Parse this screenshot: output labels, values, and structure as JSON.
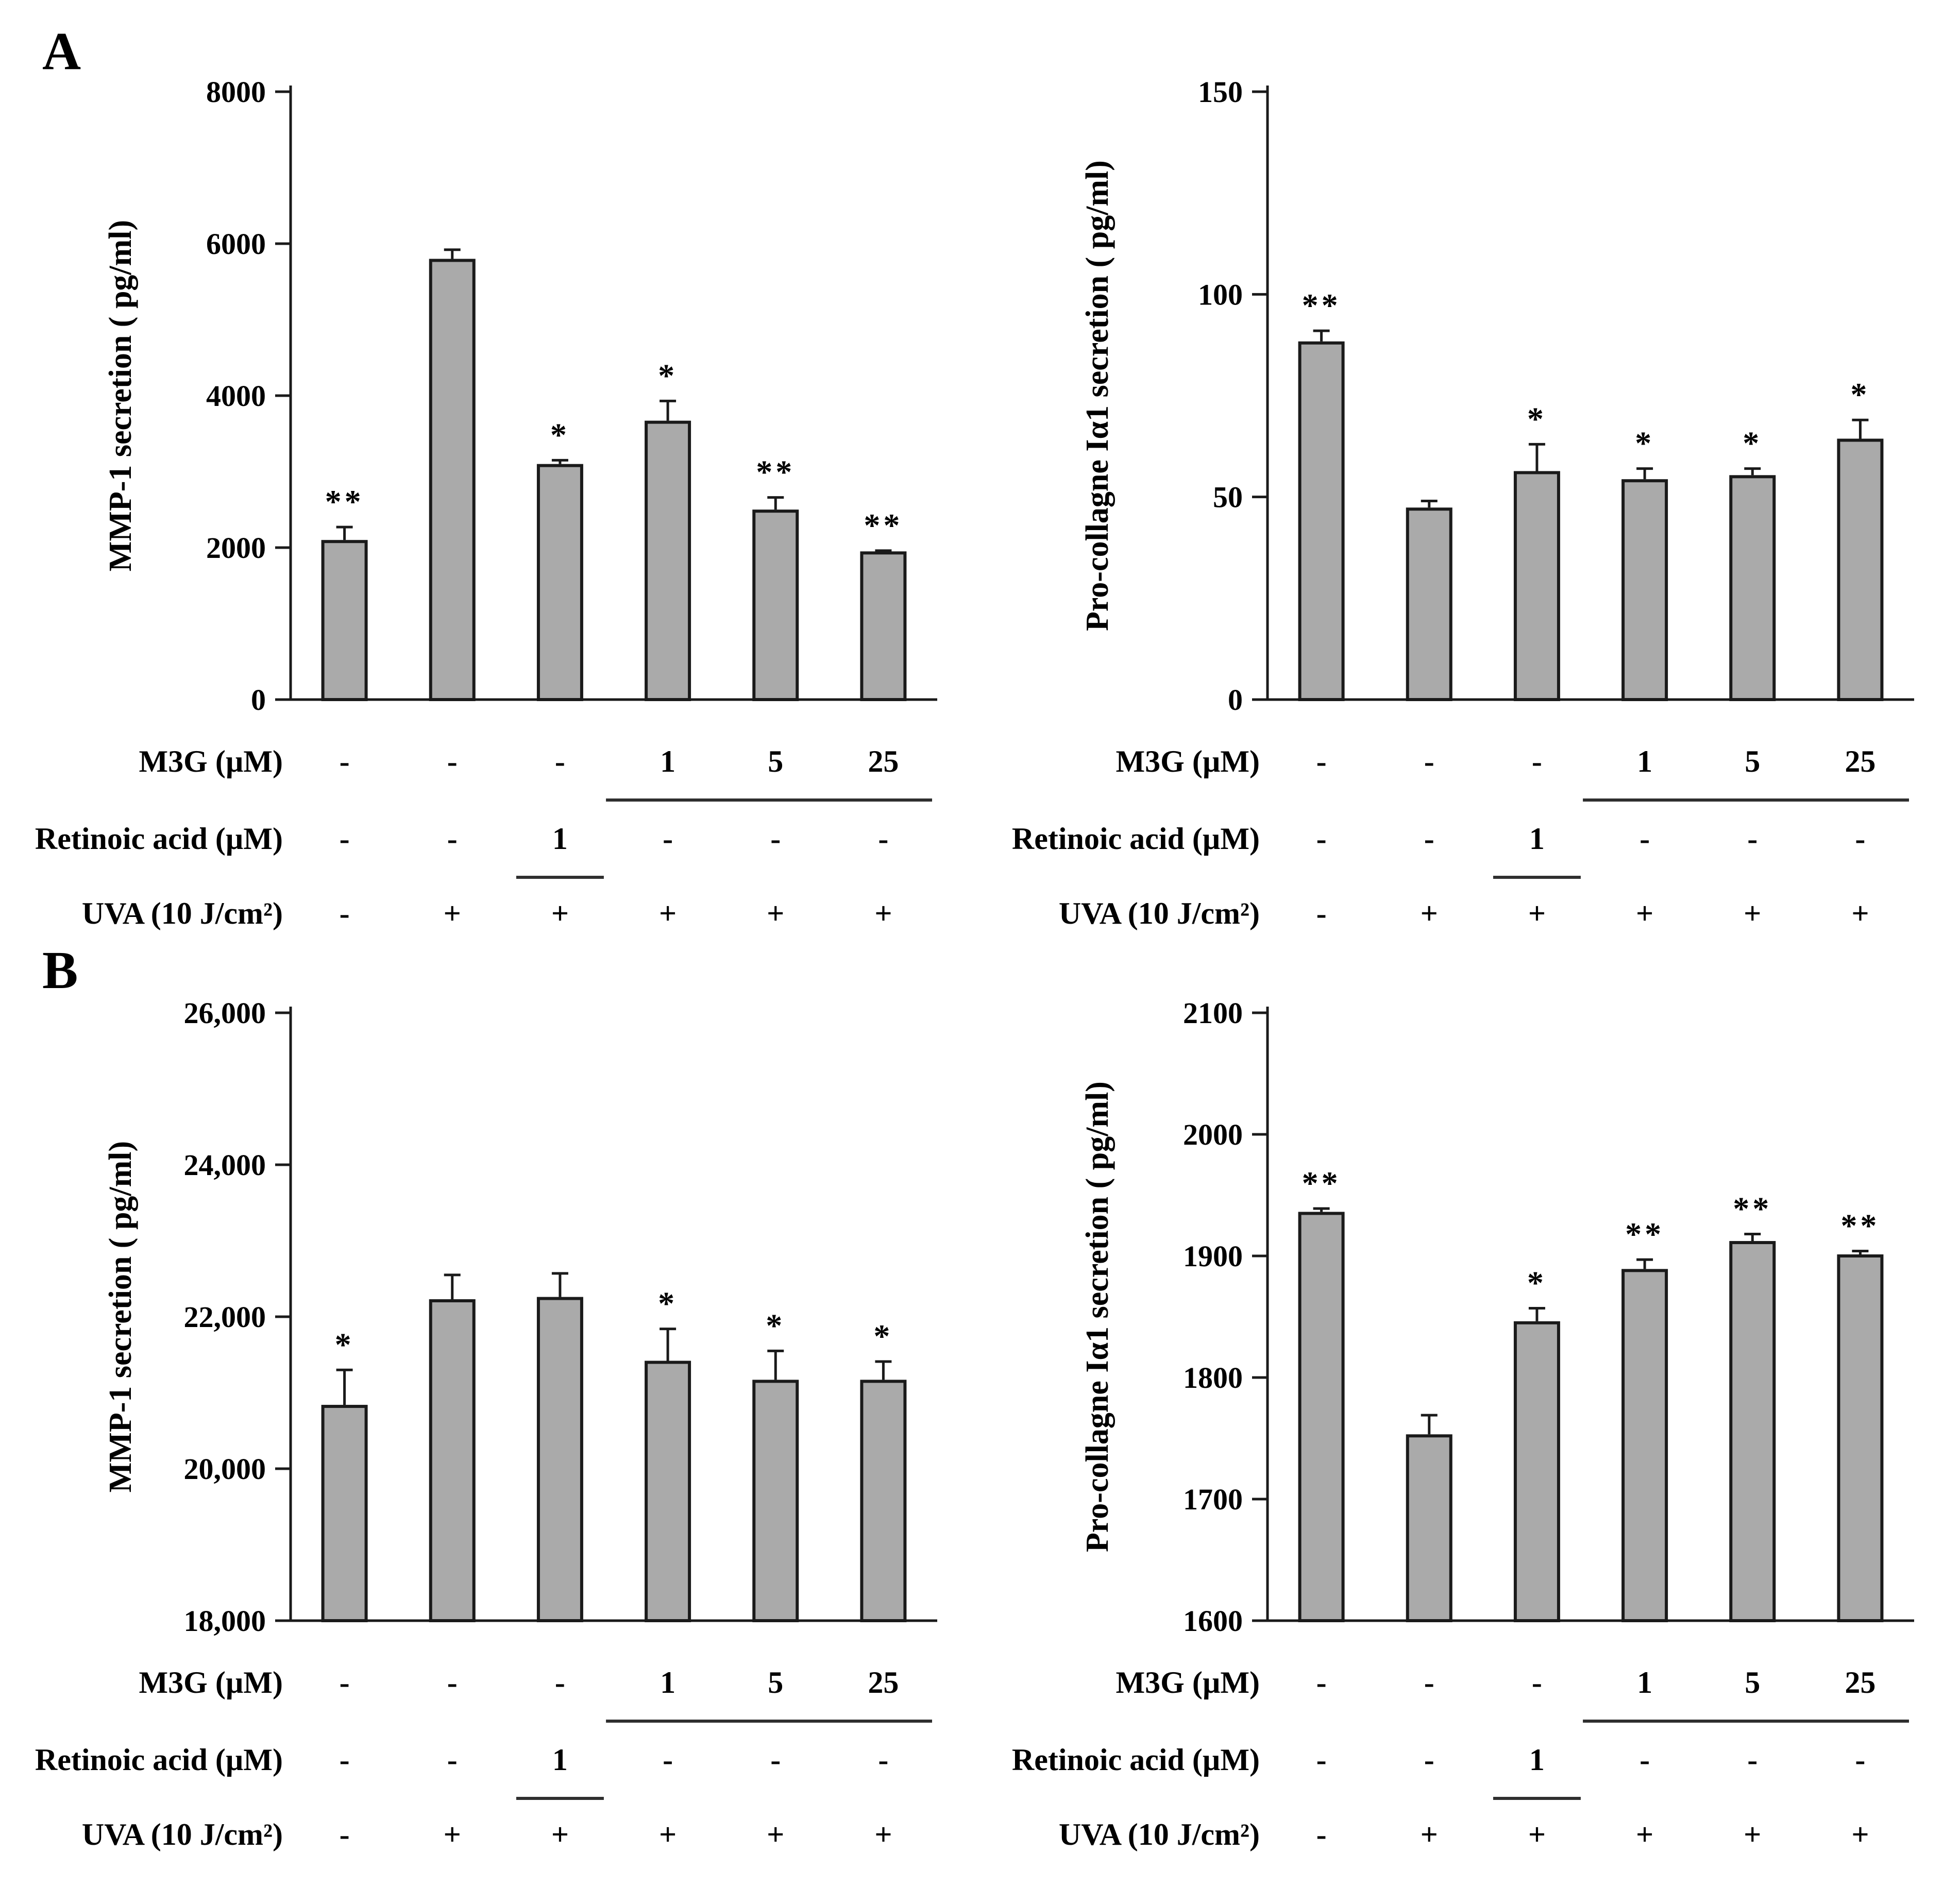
{
  "figure": {
    "panels": {
      "a": "A",
      "b": "B"
    },
    "colors": {
      "bar_fill": "#aaaaaa",
      "bar_stroke": "#1a1a1a",
      "axis": "#1a1a1a",
      "text": "#000000",
      "underline": "#2f2f2f"
    }
  },
  "chart_data": [
    {
      "id": "chart-a-left",
      "panel": "A",
      "type": "bar",
      "title": "",
      "xlabel": "",
      "ylabel": "MMP-1 secretion ( pg/ml)",
      "ylim": [
        0,
        8000
      ],
      "grid": false,
      "legend": "none",
      "yticks": [
        {
          "v": 0,
          "label": "0"
        },
        {
          "v": 2000,
          "label": "2000"
        },
        {
          "v": 4000,
          "label": "4000"
        },
        {
          "v": 6000,
          "label": "6000"
        },
        {
          "v": 8000,
          "label": "8000"
        }
      ],
      "categories": [
        "control",
        "UVA",
        "UVA+RA1",
        "UVA+M3G1",
        "UVA+M3G5",
        "UVA+M3G25"
      ],
      "values": [
        2080,
        5780,
        3080,
        3650,
        2480,
        1930
      ],
      "errors": [
        190,
        140,
        70,
        280,
        180,
        30
      ],
      "sig": [
        "**",
        "",
        "*",
        "*",
        "**",
        "**"
      ],
      "conditions": {
        "rows": [
          {
            "label": "M3G (µM)",
            "values": [
              "-",
              "-",
              "-",
              "1",
              "5",
              "25"
            ],
            "underline": [
              3,
              5
            ]
          },
          {
            "label": "Retinoic acid (µM)",
            "values": [
              "-",
              "-",
              "1",
              "-",
              "-",
              "-"
            ],
            "underline": [
              2,
              2
            ]
          },
          {
            "label": "UVA (10 J/cm²)",
            "values": [
              "-",
              "+",
              "+",
              "+",
              "+",
              "+"
            ]
          }
        ]
      }
    },
    {
      "id": "chart-a-right",
      "panel": "A",
      "type": "bar",
      "title": "",
      "xlabel": "",
      "ylabel": "Pro-collagne Iα1 secretion ( pg/ml)",
      "ylim": [
        0,
        150
      ],
      "grid": false,
      "legend": "none",
      "yticks": [
        {
          "v": 0,
          "label": "0"
        },
        {
          "v": 50,
          "label": "50"
        },
        {
          "v": 100,
          "label": "100"
        },
        {
          "v": 150,
          "label": "150"
        }
      ],
      "categories": [
        "control",
        "UVA",
        "UVA+RA1",
        "UVA+M3G1",
        "UVA+M3G5",
        "UVA+M3G25"
      ],
      "values": [
        88,
        47,
        56,
        54,
        55,
        64
      ],
      "errors": [
        3,
        2,
        7,
        3,
        2,
        5
      ],
      "sig": [
        "**",
        "",
        "*",
        "*",
        "*",
        "*"
      ],
      "conditions": {
        "rows": [
          {
            "label": "M3G (µM)",
            "values": [
              "-",
              "-",
              "-",
              "1",
              "5",
              "25"
            ],
            "underline": [
              3,
              5
            ]
          },
          {
            "label": "Retinoic acid (µM)",
            "values": [
              "-",
              "-",
              "1",
              "-",
              "-",
              "-"
            ],
            "underline": [
              2,
              2
            ]
          },
          {
            "label": "UVA (10 J/cm²)",
            "values": [
              "-",
              "+",
              "+",
              "+",
              "+",
              "+"
            ]
          }
        ]
      }
    },
    {
      "id": "chart-b-left",
      "panel": "B",
      "type": "bar",
      "title": "",
      "xlabel": "",
      "ylabel": "MMP-1 secretion ( pg/ml)",
      "ylim": [
        18000,
        26000
      ],
      "grid": false,
      "legend": "none",
      "yticks": [
        {
          "v": 18000,
          "label": "18,000"
        },
        {
          "v": 20000,
          "label": "20,000"
        },
        {
          "v": 22000,
          "label": "22,000"
        },
        {
          "v": 24000,
          "label": "24,000"
        },
        {
          "v": 26000,
          "label": "26,000"
        }
      ],
      "categories": [
        "control",
        "UVA",
        "UVA+RA1",
        "UVA+M3G1",
        "UVA+M3G5",
        "UVA+M3G25"
      ],
      "values": [
        20820,
        22210,
        22240,
        21400,
        21150,
        21150
      ],
      "errors": [
        480,
        340,
        330,
        440,
        400,
        260
      ],
      "sig": [
        "*",
        "",
        "",
        "*",
        "*",
        "*"
      ],
      "conditions": {
        "rows": [
          {
            "label": "M3G (µM)",
            "values": [
              "-",
              "-",
              "-",
              "1",
              "5",
              "25"
            ],
            "underline": [
              3,
              5
            ]
          },
          {
            "label": "Retinoic acid (µM)",
            "values": [
              "-",
              "-",
              "1",
              "-",
              "-",
              "-"
            ],
            "underline": [
              2,
              2
            ]
          },
          {
            "label": "UVA (10 J/cm²)",
            "values": [
              "-",
              "+",
              "+",
              "+",
              "+",
              "+"
            ]
          }
        ]
      }
    },
    {
      "id": "chart-b-right",
      "panel": "B",
      "type": "bar",
      "title": "",
      "xlabel": "",
      "ylabel": "Pro-collagne Iα1 secretion ( pg/ml)",
      "ylim": [
        1600,
        2100
      ],
      "grid": false,
      "legend": "none",
      "yticks": [
        {
          "v": 1600,
          "label": "1600"
        },
        {
          "v": 1700,
          "label": "1700"
        },
        {
          "v": 1800,
          "label": "1800"
        },
        {
          "v": 1900,
          "label": "1900"
        },
        {
          "v": 2000,
          "label": "2000"
        },
        {
          "v": 2100,
          "label": "2100"
        }
      ],
      "categories": [
        "control",
        "UVA",
        "UVA+RA1",
        "UVA+M3G1",
        "UVA+M3G5",
        "UVA+M3G25"
      ],
      "values": [
        1935,
        1752,
        1845,
        1888,
        1911,
        1900
      ],
      "errors": [
        4,
        17,
        12,
        9,
        7,
        4
      ],
      "sig": [
        "**",
        "",
        "*",
        "**",
        "**",
        "**"
      ],
      "conditions": {
        "rows": [
          {
            "label": "M3G (µM)",
            "values": [
              "-",
              "-",
              "-",
              "1",
              "5",
              "25"
            ],
            "underline": [
              3,
              5
            ]
          },
          {
            "label": "Retinoic acid (µM)",
            "values": [
              "-",
              "-",
              "1",
              "-",
              "-",
              "-"
            ],
            "underline": [
              2,
              2
            ]
          },
          {
            "label": "UVA (10 J/cm²)",
            "values": [
              "-",
              "+",
              "+",
              "+",
              "+",
              "+"
            ]
          }
        ]
      }
    }
  ]
}
